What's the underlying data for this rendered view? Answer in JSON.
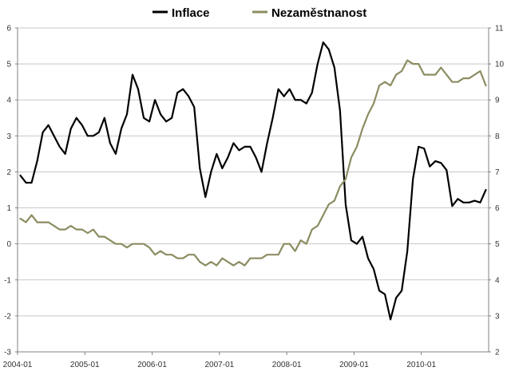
{
  "chart_data": {
    "type": "line",
    "title": "",
    "xlabel": "",
    "ylabel_left": "",
    "ylabel_right": "",
    "x_tick_labels": [
      "2004-01",
      "2005-01",
      "2006-01",
      "2007-01",
      "2008-01",
      "2009-01",
      "2010-01"
    ],
    "y_left_ticks": [
      "-3",
      "-2",
      "-1",
      "0",
      "1",
      "2",
      "3",
      "4",
      "5",
      "6"
    ],
    "y_right_ticks": [
      "2",
      "3",
      "4",
      "5",
      "6",
      "7",
      "8",
      "9",
      "10",
      "11"
    ],
    "ylim_left": [
      -3,
      6
    ],
    "ylim_right": [
      2,
      11
    ],
    "grid": "horizontal",
    "legend_position": "top",
    "series": [
      {
        "name": "Inflace",
        "axis": "left",
        "color": "#000000",
        "values": [
          1.9,
          1.7,
          1.7,
          2.3,
          3.1,
          3.3,
          3.0,
          2.7,
          2.5,
          3.2,
          3.5,
          3.3,
          3.0,
          3.0,
          3.1,
          3.5,
          2.8,
          2.5,
          3.2,
          3.6,
          4.7,
          4.3,
          3.5,
          3.4,
          4.0,
          3.6,
          3.4,
          3.5,
          4.2,
          4.3,
          4.1,
          3.8,
          2.1,
          1.3,
          2.0,
          2.5,
          2.1,
          2.4,
          2.8,
          2.6,
          2.7,
          2.7,
          2.4,
          2.0,
          2.8,
          3.5,
          4.3,
          4.1,
          4.3,
          4.0,
          4.0,
          3.9,
          4.2,
          5.0,
          5.6,
          5.4,
          4.9,
          3.7,
          1.1,
          0.1,
          0.0,
          0.2,
          -0.4,
          -0.7,
          -1.3,
          -1.4,
          -2.1,
          -1.5,
          -1.3,
          -0.2,
          1.8,
          2.7,
          2.65,
          2.15,
          2.3,
          2.25,
          2.05,
          1.05,
          1.25,
          1.15,
          1.15,
          1.2,
          1.15,
          1.5
        ]
      },
      {
        "name": "Nezaměstnanost",
        "axis": "right",
        "color": "#8c8c62",
        "values": [
          5.7,
          5.6,
          5.8,
          5.6,
          5.6,
          5.6,
          5.5,
          5.4,
          5.4,
          5.5,
          5.4,
          5.4,
          5.3,
          5.4,
          5.2,
          5.2,
          5.1,
          5.0,
          5.0,
          4.9,
          5.0,
          5.0,
          5.0,
          4.9,
          4.7,
          4.8,
          4.7,
          4.7,
          4.6,
          4.6,
          4.7,
          4.7,
          4.5,
          4.4,
          4.5,
          4.4,
          4.6,
          4.5,
          4.4,
          4.5,
          4.4,
          4.6,
          4.6,
          4.6,
          4.7,
          4.7,
          4.7,
          5.0,
          5.0,
          4.8,
          5.1,
          5.0,
          5.4,
          5.5,
          5.8,
          6.1,
          6.2,
          6.6,
          6.8,
          7.4,
          7.7,
          8.2,
          8.6,
          8.9,
          9.4,
          9.5,
          9.4,
          9.7,
          9.8,
          10.1,
          10.0,
          10.0,
          9.7,
          9.7,
          9.7,
          9.9,
          9.7,
          9.5,
          9.5,
          9.6,
          9.6,
          9.7,
          9.8,
          9.4
        ]
      }
    ]
  }
}
